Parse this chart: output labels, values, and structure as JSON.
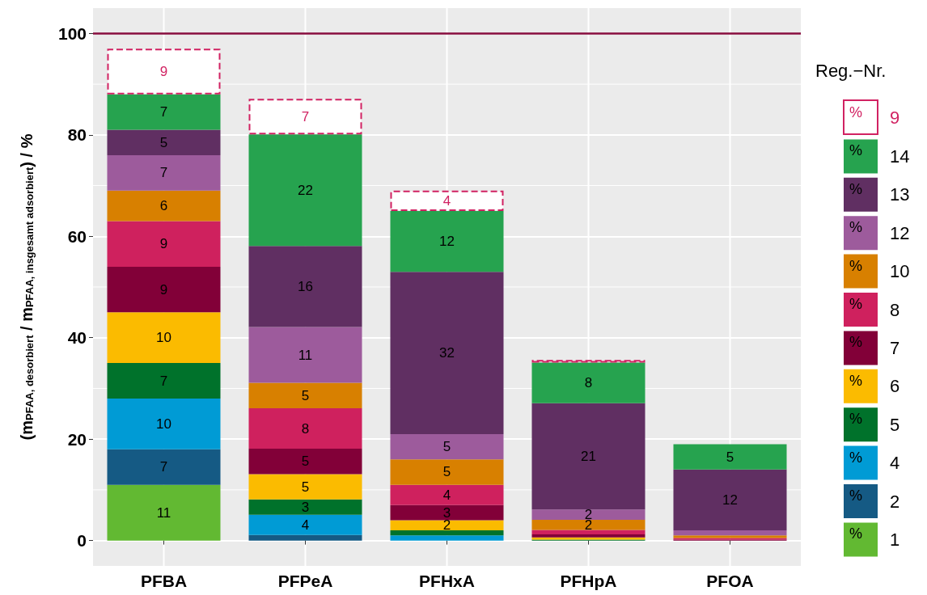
{
  "chart_data": {
    "type": "bar",
    "stacked": true,
    "ylabel": "(m$_{PFAA, desorbiert}$ / m$_{PFAA, insgesamt adsorbiert}$) / %",
    "legend_title": "Reg.−Nr.",
    "annotations": [
      "%"
    ],
    "categories": [
      "PFBA",
      "PFPeA",
      "PFHxA",
      "PFHpA",
      "PFOA"
    ],
    "series": [
      {
        "name": "1",
        "color": "#62b932",
        "values": [
          11,
          null,
          null,
          null,
          null
        ],
        "value_labels": [
          "11",
          null,
          null,
          null,
          null
        ]
      },
      {
        "name": "2",
        "color": "#155a84",
        "values": [
          7,
          1.1,
          null,
          null,
          null
        ],
        "value_labels": [
          "7",
          null,
          null,
          null,
          null
        ]
      },
      {
        "name": "4",
        "color": "#009bd5",
        "values": [
          10,
          4,
          1,
          null,
          null
        ],
        "value_labels": [
          "10",
          "4",
          null,
          null,
          null
        ]
      },
      {
        "name": "5",
        "color": "#00722b",
        "values": [
          7,
          3,
          1,
          0.2,
          null
        ],
        "value_labels": [
          "7",
          "3",
          null,
          null,
          null
        ]
      },
      {
        "name": "6",
        "color": "#fbbb00",
        "values": [
          10,
          5,
          2,
          0.4,
          null
        ],
        "value_labels": [
          "10",
          "5",
          "2",
          null,
          null
        ]
      },
      {
        "name": "7",
        "color": "#820038",
        "values": [
          9,
          5,
          3,
          0.6,
          0.2
        ],
        "value_labels": [
          "9",
          "5",
          "3",
          null,
          null
        ]
      },
      {
        "name": "8",
        "color": "#cf215e",
        "values": [
          9,
          8,
          4,
          0.9,
          0.3
        ],
        "value_labels": [
          "9",
          "8",
          "4",
          null,
          null
        ]
      },
      {
        "name": "10",
        "color": "#d88000",
        "values": [
          6,
          5,
          5,
          2,
          0.5
        ],
        "value_labels": [
          "6",
          "5",
          "5",
          "2",
          null
        ]
      },
      {
        "name": "12",
        "color": "#9d5b9c",
        "values": [
          7,
          11,
          5,
          2,
          1
        ],
        "value_labels": [
          "7",
          "11",
          "5",
          "2",
          null
        ]
      },
      {
        "name": "13",
        "color": "#602f62",
        "values": [
          5,
          16,
          32,
          21,
          12
        ],
        "value_labels": [
          "5",
          "16",
          "32",
          "21",
          "12"
        ]
      },
      {
        "name": "14",
        "color": "#26a34f",
        "values": [
          7,
          22,
          12,
          8,
          5
        ],
        "value_labels": [
          "7",
          "22",
          "12",
          "8",
          "5"
        ]
      },
      {
        "name": "9",
        "color": "#d12262",
        "line_style": "dashed",
        "values": [
          9,
          7,
          4,
          0.5,
          null
        ],
        "value_labels": [
          "9",
          "7",
          "4",
          null,
          null
        ]
      }
    ],
    "ylim": [
      -5,
      105
    ],
    "yticks": [
      0,
      20,
      40,
      60,
      80,
      100
    ],
    "grid": true,
    "legend": "right",
    "ref_lines": [
      {
        "axis": "y",
        "value": 100,
        "color": "#870c3e"
      }
    ]
  }
}
